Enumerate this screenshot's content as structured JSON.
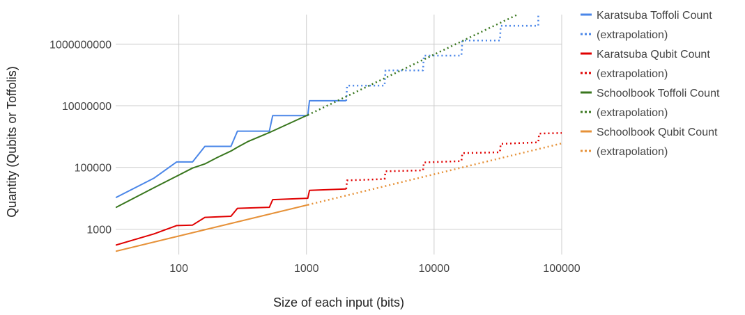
{
  "chart_data": {
    "type": "line",
    "xlabel": "Size of each input (bits)",
    "ylabel": "Quantity (Qubits or Toffolis)",
    "x_scale": "log",
    "y_scale": "log",
    "xlim": [
      32,
      100000
    ],
    "ylim": [
      150,
      9000000000
    ],
    "x_ticks": [
      100,
      1000,
      10000,
      100000
    ],
    "x_tick_labels": [
      "100",
      "1000",
      "10000",
      "100000"
    ],
    "y_ticks": [
      1000,
      100000,
      10000000,
      1000000000
    ],
    "y_tick_labels": [
      "1000",
      "100000",
      "10000000",
      "1000000000"
    ],
    "grid": true,
    "legend_position": "right",
    "series": [
      {
        "name": "Karatsuba Toffoli Count",
        "color": "#4a86e8",
        "style": "solid",
        "x": [
          32,
          64,
          96,
          128,
          160,
          256,
          288,
          512,
          544,
          1024,
          1056,
          2048
        ],
        "y": [
          10500,
          45000,
          150000,
          150000,
          480000,
          480000,
          1500000,
          1500000,
          4800000,
          4800000,
          14500000,
          14500000
        ]
      },
      {
        "name": "(extrapolation)",
        "color": "#4a86e8",
        "style": "dotted",
        "x": [
          2048,
          2080,
          4096,
          4160,
          8192,
          8320,
          16384,
          16640,
          32768,
          33280,
          65536,
          65536
        ],
        "y": [
          14500000,
          45000000,
          45000000,
          140000000,
          140000000,
          420000000,
          420000000,
          1300000000,
          1300000000,
          3900000000,
          3900000000,
          9000000000
        ]
      },
      {
        "name": "Karatsuba Qubit Count",
        "color": "#e00000",
        "style": "solid",
        "x": [
          32,
          64,
          96,
          128,
          160,
          256,
          288,
          512,
          544,
          1024,
          1056,
          2048
        ],
        "y": [
          300,
          700,
          1300,
          1350,
          2400,
          2600,
          4700,
          5100,
          9000,
          10000,
          18000,
          20000
        ]
      },
      {
        "name": "(extrapolation)",
        "color": "#e00000",
        "style": "dotted",
        "x": [
          2048,
          2080,
          4096,
          4160,
          8192,
          8320,
          16384,
          16640,
          32768,
          33280,
          65536,
          66560,
          100000
        ],
        "y": [
          20000,
          38000,
          42000,
          75000,
          80000,
          145000,
          160000,
          290000,
          310000,
          580000,
          650000,
          1250000,
          1300000
        ]
      },
      {
        "name": "Schoolbook Toffoli Count",
        "color": "#38761d",
        "style": "solid",
        "x": [
          32,
          64,
          128,
          160,
          200,
          256,
          288,
          350,
          512,
          1024
        ],
        "y": [
          5000,
          22000,
          95000,
          130000,
          210000,
          340000,
          450000,
          700000,
          1350000,
          5000000
        ]
      },
      {
        "name": "(extrapolation)",
        "color": "#38761d",
        "style": "dotted",
        "x": [
          1024,
          45000
        ],
        "y": [
          5000000,
          9000000000
        ]
      },
      {
        "name": "Schoolbook Qubit Count",
        "color": "#e69138",
        "style": "solid",
        "x": [
          32,
          1024
        ],
        "y": [
          190,
          6100
        ]
      },
      {
        "name": "(extrapolation)",
        "color": "#e69138",
        "style": "dotted",
        "x": [
          1024,
          100000
        ],
        "y": [
          6100,
          600000
        ]
      }
    ]
  }
}
